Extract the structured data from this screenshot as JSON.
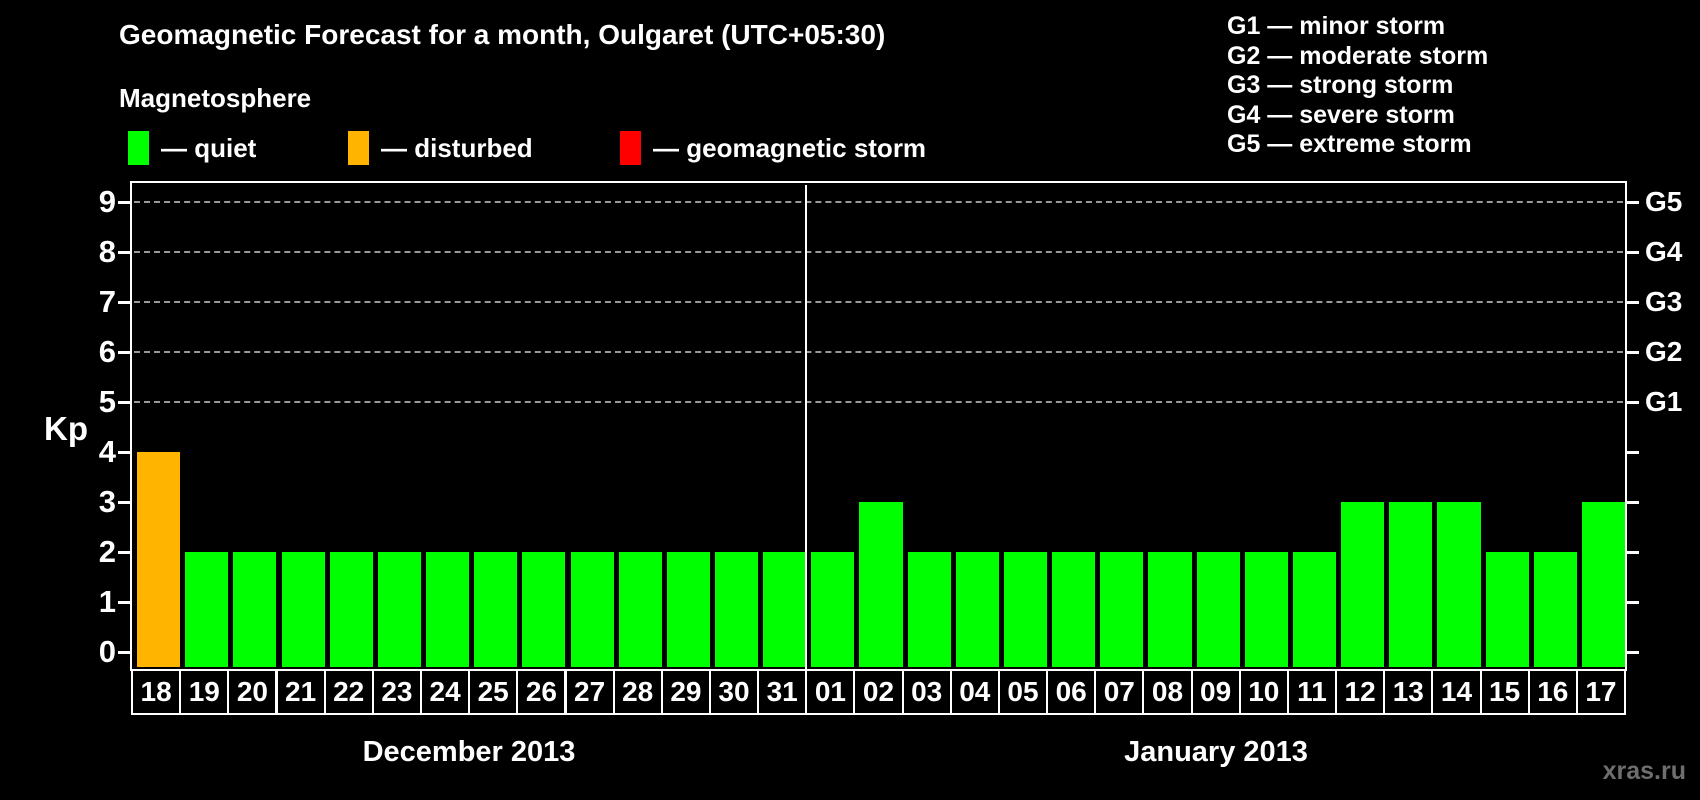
{
  "header": {
    "title": "Geomagnetic Forecast for a month, Oulgaret (UTC+05:30)"
  },
  "legend": {
    "title": "Magnetosphere",
    "items": [
      {
        "status": "quiet",
        "label": "— quiet"
      },
      {
        "status": "disturbed",
        "label": "— disturbed"
      },
      {
        "status": "storm",
        "label": "— geomagnetic storm"
      }
    ]
  },
  "g_legend": {
    "items": [
      "G1 — minor storm",
      "G2 — moderate storm",
      "G3 — strong storm",
      "G4 — severe storm",
      "G5 — extreme storm"
    ]
  },
  "axes": {
    "left_label": "Kp",
    "kp_ticks": [
      0,
      1,
      2,
      3,
      4,
      5,
      6,
      7,
      8,
      9
    ],
    "g_levels": [
      {
        "label": "G1",
        "kp": 5
      },
      {
        "label": "G2",
        "kp": 6
      },
      {
        "label": "G3",
        "kp": 7
      },
      {
        "label": "G4",
        "kp": 8
      },
      {
        "label": "G5",
        "kp": 9
      }
    ],
    "grid_kp": [
      5,
      6,
      7,
      8,
      9
    ]
  },
  "chart_data": {
    "type": "bar",
    "title": "Geomagnetic Forecast for a month, Oulgaret (UTC+05:30)",
    "ylabel": "Kp",
    "ylim": [
      0,
      9
    ],
    "grid": "dashed horizontal at Kp 5-9 (G1-G5)",
    "categories": [
      "18",
      "19",
      "20",
      "21",
      "22",
      "23",
      "24",
      "25",
      "26",
      "27",
      "28",
      "29",
      "30",
      "31",
      "01",
      "02",
      "03",
      "04",
      "05",
      "06",
      "07",
      "08",
      "09",
      "10",
      "11",
      "12",
      "13",
      "14",
      "15",
      "16",
      "17"
    ],
    "values": [
      4,
      2,
      2,
      2,
      2,
      2,
      2,
      2,
      2,
      2,
      2,
      2,
      2,
      2,
      2,
      3,
      2,
      2,
      2,
      2,
      2,
      2,
      2,
      2,
      2,
      3,
      3,
      3,
      2,
      2,
      3
    ],
    "statuses": [
      "disturbed",
      "quiet",
      "quiet",
      "quiet",
      "quiet",
      "quiet",
      "quiet",
      "quiet",
      "quiet",
      "quiet",
      "quiet",
      "quiet",
      "quiet",
      "quiet",
      "quiet",
      "quiet",
      "quiet",
      "quiet",
      "quiet",
      "quiet",
      "quiet",
      "quiet",
      "quiet",
      "quiet",
      "quiet",
      "quiet",
      "quiet",
      "quiet",
      "quiet",
      "quiet",
      "quiet"
    ],
    "months": [
      {
        "label": "December 2013",
        "days": 14
      },
      {
        "label": "January 2013",
        "days": 17
      }
    ]
  },
  "colors": {
    "quiet": "#00ff00",
    "disturbed": "#ffb400",
    "storm": "#ff0000",
    "axis": "#ffffff",
    "grid": "#999999",
    "watermark": "#6e6e6e"
  },
  "watermark": "xras.ru"
}
